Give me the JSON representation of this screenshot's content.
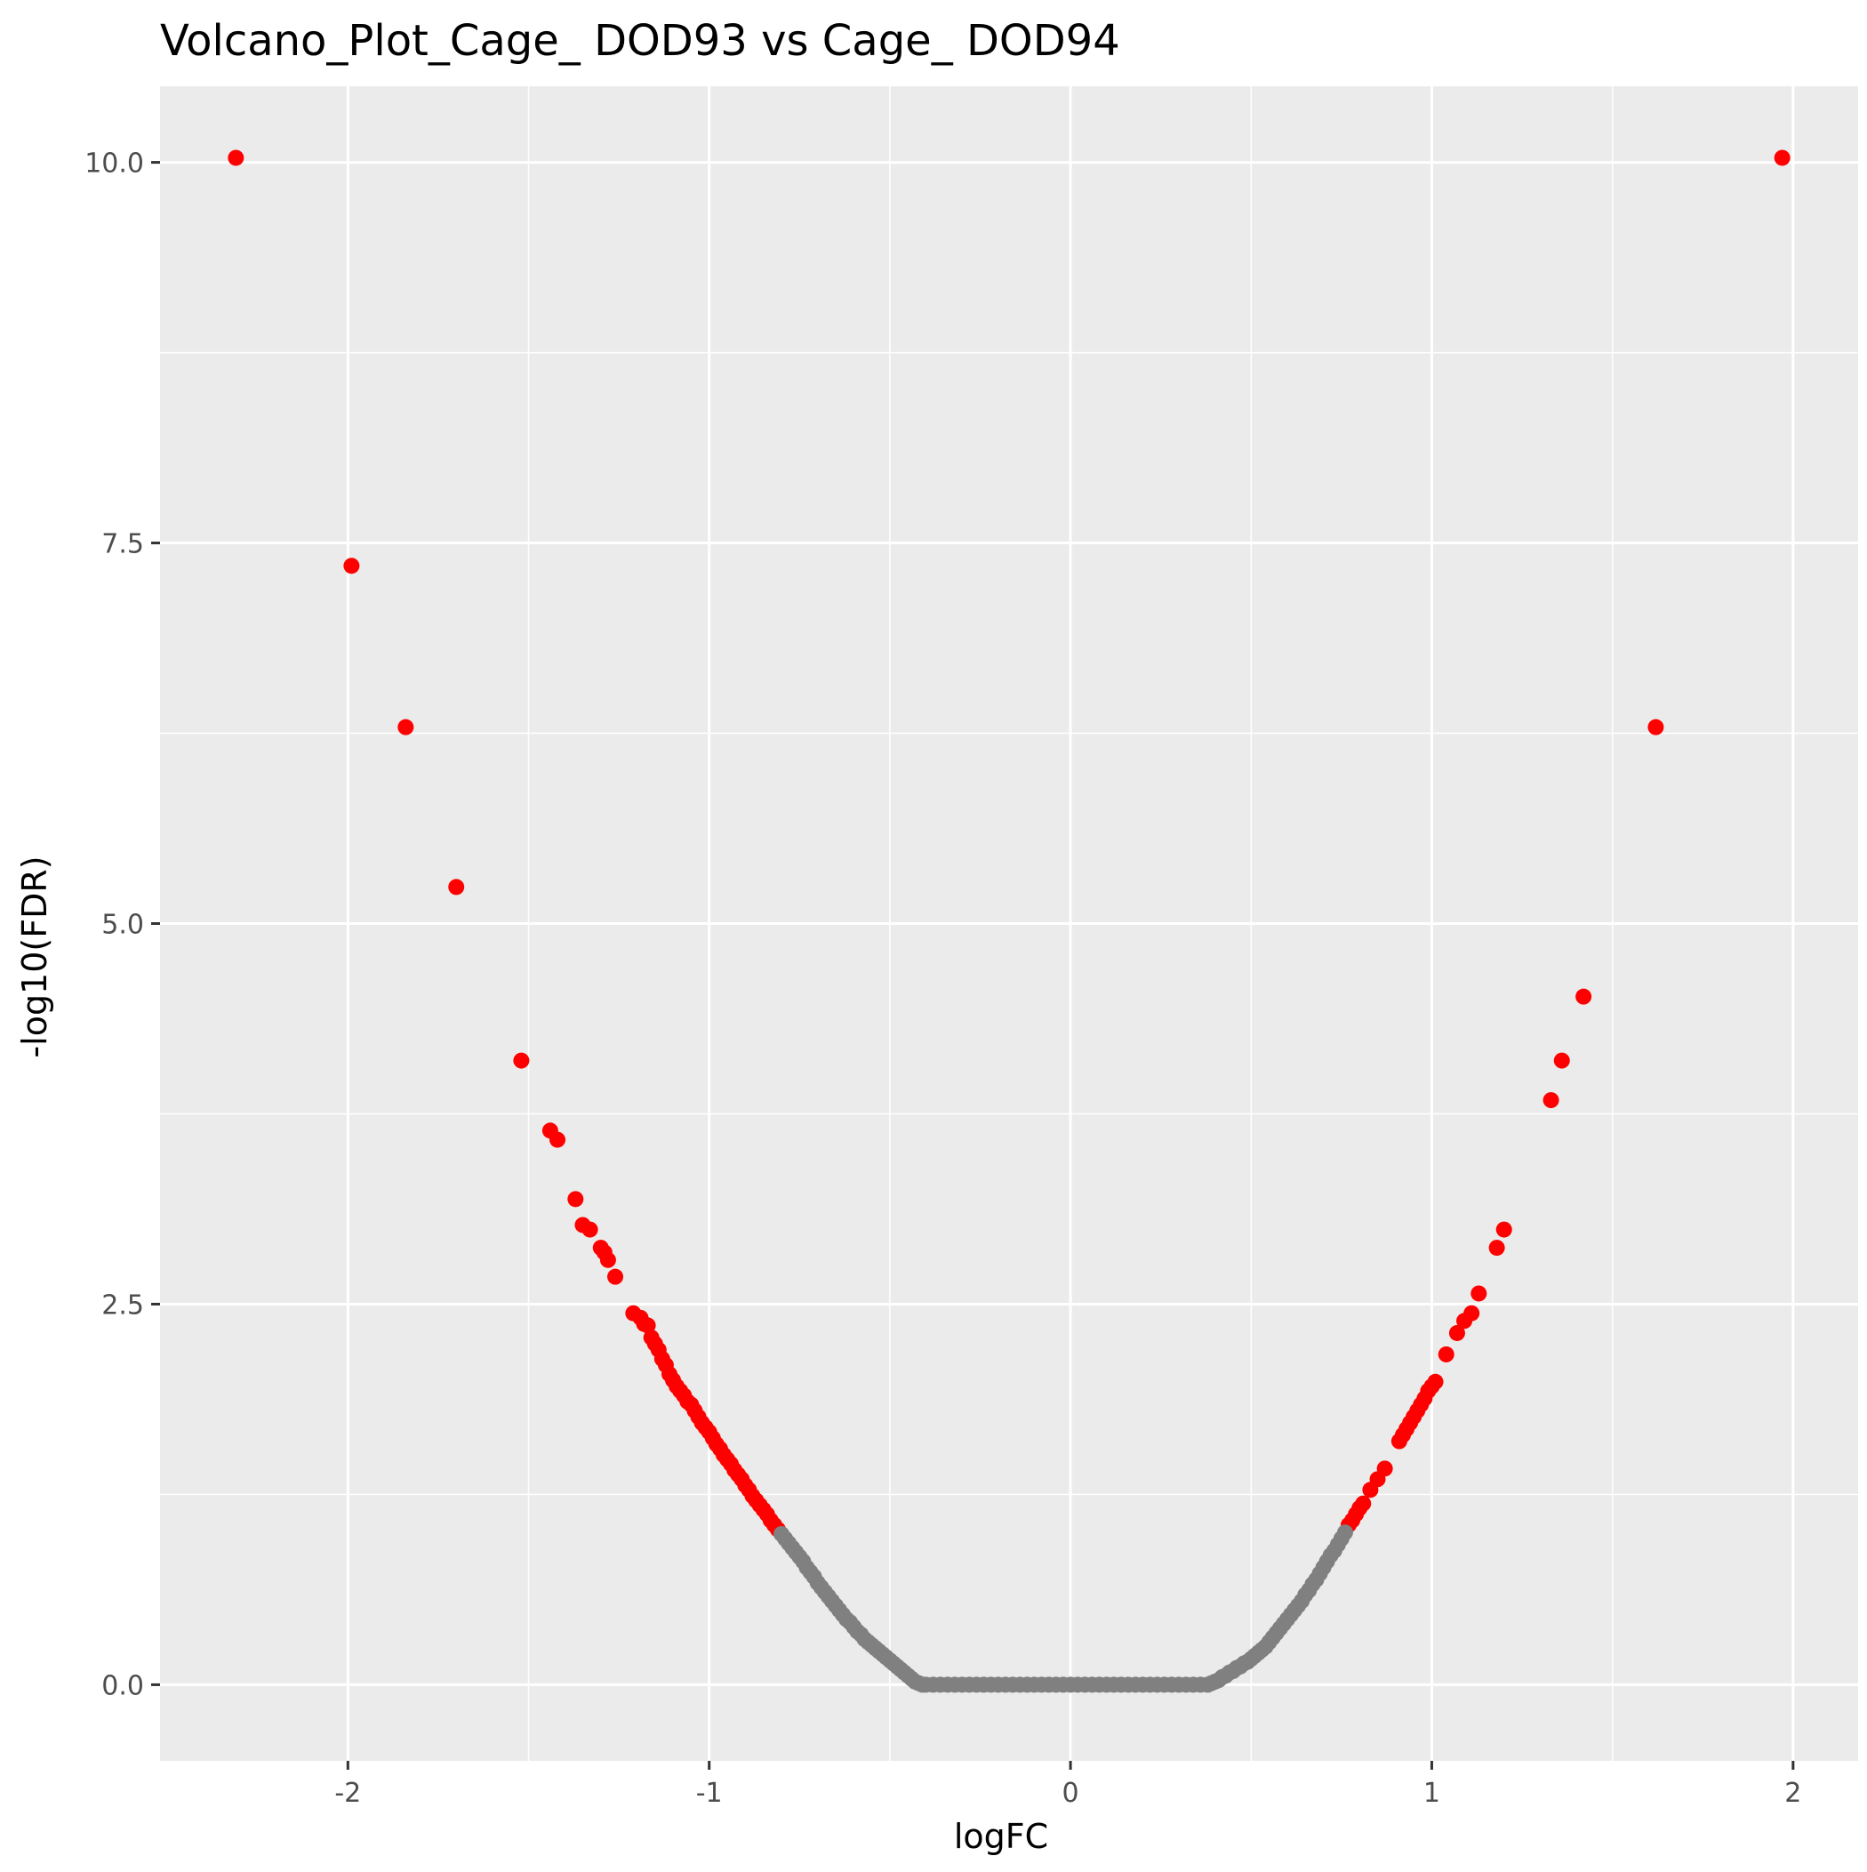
{
  "chart_data": {
    "type": "scatter",
    "title": "Volcano_Plot_Cage_ DOD93 vs Cage_ DOD94",
    "xlabel": "logFC",
    "ylabel": "-log10(FDR)",
    "xlim": [
      -2.52,
      2.18
    ],
    "ylim": [
      -0.5,
      10.5
    ],
    "x_ticks": [
      -2,
      -1,
      0,
      1,
      2
    ],
    "x_tick_labels": [
      "-2",
      "-1",
      "0",
      "1",
      "2"
    ],
    "y_ticks": [
      0,
      2.5,
      5,
      7.5,
      10
    ],
    "y_tick_labels": [
      "0.0",
      "2.5",
      "5.0",
      "7.5",
      "10.0"
    ],
    "grid": true,
    "legend": "none",
    "colors": {
      "panel_background": "#ebebeb",
      "grid_major": "#ffffff",
      "significant": "#ff0000",
      "not_significant": "#808080"
    },
    "series": [
      {
        "color": "#ff0000",
        "points": [
          [
            -2.31,
            10.03
          ],
          [
            -1.99,
            7.35
          ],
          [
            -1.84,
            6.29
          ],
          [
            -1.7,
            5.24
          ],
          [
            -1.52,
            4.1
          ],
          [
            -1.44,
            3.64
          ],
          [
            -1.42,
            3.58
          ],
          [
            -1.37,
            3.19
          ],
          [
            -1.35,
            3.02
          ],
          [
            -1.33,
            2.99
          ],
          [
            -1.3,
            2.87
          ],
          [
            -1.29,
            2.84
          ],
          [
            -1.28,
            2.79
          ],
          [
            -1.26,
            2.68
          ],
          [
            -1.21,
            2.44
          ],
          [
            -1.19,
            2.41
          ],
          [
            -1.18,
            2.37
          ],
          [
            -1.17,
            2.36
          ],
          [
            -1.16,
            2.28
          ],
          [
            -1.15,
            2.24
          ],
          [
            -1.14,
            2.2
          ],
          [
            -1.13,
            2.14
          ],
          [
            -1.12,
            2.1
          ],
          [
            -1.11,
            2.04
          ],
          [
            -1.1,
            2.0
          ],
          [
            -1.09,
            1.96
          ],
          [
            -1.08,
            1.93
          ],
          [
            -1.07,
            1.9
          ],
          [
            -1.06,
            1.86
          ],
          [
            -1.05,
            1.84
          ],
          [
            -1.04,
            1.8
          ],
          [
            -1.03,
            1.76
          ],
          [
            -1.02,
            1.72
          ],
          [
            -1.01,
            1.69
          ],
          [
            -1.0,
            1.66
          ],
          [
            -0.99,
            1.62
          ],
          [
            -0.98,
            1.58
          ],
          [
            -0.97,
            1.55
          ],
          [
            -0.96,
            1.51
          ],
          [
            -0.95,
            1.48
          ],
          [
            -0.94,
            1.45
          ],
          [
            -0.93,
            1.41
          ],
          [
            -0.92,
            1.38
          ],
          [
            -0.91,
            1.35
          ],
          [
            -0.9,
            1.31
          ],
          [
            -0.89,
            1.28
          ],
          [
            -0.88,
            1.24
          ],
          [
            -0.87,
            1.21
          ],
          [
            -0.86,
            1.18
          ],
          [
            -0.85,
            1.15
          ],
          [
            -0.84,
            1.12
          ],
          [
            -0.83,
            1.08
          ],
          [
            -0.82,
            1.05
          ],
          [
            -0.81,
            1.02
          ],
          [
            1.97,
            10.03
          ],
          [
            1.62,
            6.29
          ],
          [
            1.42,
            4.52
          ],
          [
            1.36,
            4.1
          ],
          [
            1.33,
            3.84
          ],
          [
            1.2,
            2.99
          ],
          [
            1.18,
            2.87
          ],
          [
            1.13,
            2.57
          ],
          [
            1.11,
            2.44
          ],
          [
            1.09,
            2.39
          ],
          [
            1.07,
            2.31
          ],
          [
            1.04,
            2.17
          ],
          [
            1.01,
            1.99
          ],
          [
            1.0,
            1.96
          ],
          [
            0.99,
            1.93
          ],
          [
            0.98,
            1.88
          ],
          [
            0.97,
            1.84
          ],
          [
            0.96,
            1.8
          ],
          [
            0.95,
            1.76
          ],
          [
            0.94,
            1.72
          ],
          [
            0.93,
            1.68
          ],
          [
            0.92,
            1.64
          ],
          [
            0.91,
            1.6
          ],
          [
            0.87,
            1.42
          ],
          [
            0.85,
            1.35
          ],
          [
            0.83,
            1.28
          ],
          [
            0.81,
            1.19
          ],
          [
            0.8,
            1.16
          ],
          [
            0.79,
            1.12
          ],
          [
            0.78,
            1.08
          ],
          [
            0.77,
            1.05
          ]
        ]
      },
      {
        "color": "#808080",
        "points": [
          [
            -0.8,
            0.99
          ],
          [
            -0.79,
            0.96
          ],
          [
            -0.78,
            0.93
          ],
          [
            -0.77,
            0.9
          ],
          [
            -0.76,
            0.87
          ],
          [
            -0.75,
            0.84
          ],
          [
            -0.74,
            0.81
          ],
          [
            -0.73,
            0.77
          ],
          [
            -0.72,
            0.74
          ],
          [
            -0.71,
            0.71
          ],
          [
            -0.7,
            0.67
          ],
          [
            -0.69,
            0.64
          ],
          [
            -0.68,
            0.61
          ],
          [
            -0.67,
            0.58
          ],
          [
            -0.66,
            0.55
          ],
          [
            -0.65,
            0.52
          ],
          [
            -0.64,
            0.49
          ],
          [
            -0.63,
            0.46
          ],
          [
            -0.62,
            0.43
          ],
          [
            -0.61,
            0.41
          ],
          [
            -0.6,
            0.38
          ],
          [
            -0.59,
            0.35
          ],
          [
            -0.58,
            0.33
          ],
          [
            -0.57,
            0.3
          ],
          [
            -0.56,
            0.28
          ],
          [
            -0.55,
            0.26
          ],
          [
            -0.54,
            0.24
          ],
          [
            -0.53,
            0.22
          ],
          [
            -0.52,
            0.2
          ],
          [
            -0.51,
            0.18
          ],
          [
            -0.5,
            0.16
          ],
          [
            -0.49,
            0.14
          ],
          [
            -0.48,
            0.12
          ],
          [
            -0.47,
            0.1
          ],
          [
            -0.46,
            0.08
          ],
          [
            -0.45,
            0.06
          ],
          [
            -0.44,
            0.04
          ],
          [
            -0.43,
            0.02
          ],
          [
            -0.42,
            0.01
          ],
          [
            -0.41,
            0.0
          ],
          [
            -0.4,
            0.0
          ],
          [
            -0.38,
            0.0
          ],
          [
            -0.36,
            0.0
          ],
          [
            -0.34,
            0.0
          ],
          [
            -0.32,
            0.0
          ],
          [
            -0.3,
            0.0
          ],
          [
            -0.28,
            0.0
          ],
          [
            -0.26,
            0.0
          ],
          [
            -0.24,
            0.0
          ],
          [
            -0.22,
            0.0
          ],
          [
            -0.2,
            0.0
          ],
          [
            -0.18,
            0.0
          ],
          [
            -0.16,
            0.0
          ],
          [
            -0.14,
            0.0
          ],
          [
            -0.12,
            0.0
          ],
          [
            -0.1,
            0.0
          ],
          [
            -0.08,
            0.0
          ],
          [
            -0.06,
            0.0
          ],
          [
            -0.04,
            0.0
          ],
          [
            -0.02,
            0.0
          ],
          [
            0.0,
            0.0
          ],
          [
            0.02,
            0.0
          ],
          [
            0.04,
            0.0
          ],
          [
            0.06,
            0.0
          ],
          [
            0.08,
            0.0
          ],
          [
            0.1,
            0.0
          ],
          [
            0.12,
            0.0
          ],
          [
            0.14,
            0.0
          ],
          [
            0.16,
            0.0
          ],
          [
            0.18,
            0.0
          ],
          [
            0.2,
            0.0
          ],
          [
            0.22,
            0.0
          ],
          [
            0.24,
            0.0
          ],
          [
            0.26,
            0.0
          ],
          [
            0.28,
            0.0
          ],
          [
            0.3,
            0.0
          ],
          [
            0.32,
            0.0
          ],
          [
            0.34,
            0.0
          ],
          [
            0.36,
            0.0
          ],
          [
            0.38,
            0.0
          ],
          [
            0.39,
            0.01
          ],
          [
            0.4,
            0.02
          ],
          [
            0.41,
            0.03
          ],
          [
            0.42,
            0.05
          ],
          [
            0.43,
            0.06
          ],
          [
            0.44,
            0.08
          ],
          [
            0.45,
            0.09
          ],
          [
            0.46,
            0.11
          ],
          [
            0.47,
            0.12
          ],
          [
            0.48,
            0.14
          ],
          [
            0.49,
            0.15
          ],
          [
            0.5,
            0.17
          ],
          [
            0.51,
            0.19
          ],
          [
            0.52,
            0.21
          ],
          [
            0.53,
            0.23
          ],
          [
            0.54,
            0.25
          ],
          [
            0.55,
            0.28
          ],
          [
            0.56,
            0.31
          ],
          [
            0.57,
            0.34
          ],
          [
            0.58,
            0.37
          ],
          [
            0.59,
            0.4
          ],
          [
            0.6,
            0.43
          ],
          [
            0.61,
            0.46
          ],
          [
            0.62,
            0.49
          ],
          [
            0.63,
            0.52
          ],
          [
            0.64,
            0.55
          ],
          [
            0.65,
            0.59
          ],
          [
            0.66,
            0.62
          ],
          [
            0.67,
            0.66
          ],
          [
            0.68,
            0.69
          ],
          [
            0.69,
            0.73
          ],
          [
            0.7,
            0.77
          ],
          [
            0.71,
            0.81
          ],
          [
            0.72,
            0.85
          ],
          [
            0.73,
            0.88
          ],
          [
            0.74,
            0.92
          ],
          [
            0.75,
            0.96
          ],
          [
            0.76,
            1.0
          ]
        ]
      }
    ]
  }
}
